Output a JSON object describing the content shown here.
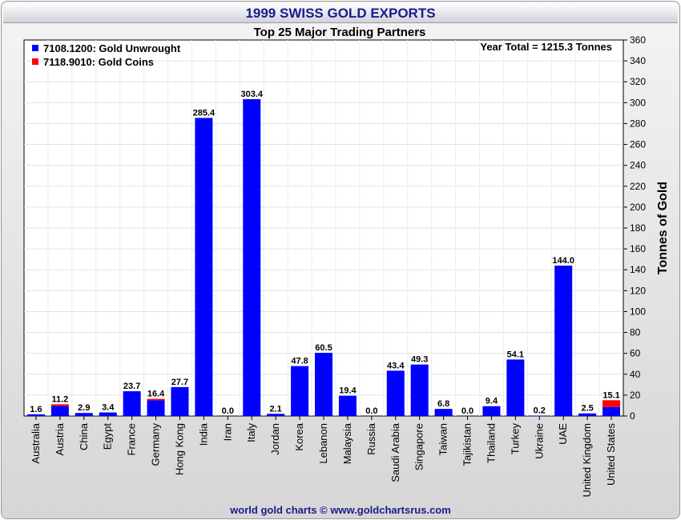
{
  "chart_data": {
    "type": "bar",
    "title": "1999 SWISS GOLD EXPORTS",
    "subtitle": "Top 25 Major Trading Partners",
    "annotation": "Year Total = 1215.3 Tonnes",
    "ylabel": "Tonnes of Gold",
    "xlabel": "",
    "ylim": [
      0,
      360
    ],
    "yticks": [
      0,
      20,
      40,
      60,
      80,
      100,
      120,
      140,
      160,
      180,
      200,
      220,
      240,
      260,
      280,
      300,
      320,
      340,
      360
    ],
    "grid": true,
    "legend_position": "top-left",
    "stacked": true,
    "categories": [
      "Australia",
      "Austria",
      "China",
      "Egypt",
      "France",
      "Germany",
      "Hong Kong",
      "India",
      "Iran",
      "Italy",
      "Jordan",
      "Korea",
      "Lebanon",
      "Malaysia",
      "Russia",
      "Saudi Arabia",
      "Singapore",
      "Taiwan",
      "Tajikistan",
      "Thailand",
      "Turkey",
      "Ukraine",
      "UAE",
      "United Kingdom",
      "United States"
    ],
    "totals": [
      "1.6",
      "11.2",
      "2.9",
      "3.4",
      "23.7",
      "16.4",
      "27.7",
      "285.4",
      "0.0",
      "303.4",
      "2.1",
      "47.8",
      "60.5",
      "19.4",
      "0.0",
      "43.4",
      "49.3",
      "6.8",
      "0.0",
      "9.4",
      "54.1",
      "0.2",
      "144.0",
      "2.5",
      "15.1"
    ],
    "series": [
      {
        "name": "7108.1200: Gold Unwrought",
        "color": "#0000ff",
        "values": [
          1.6,
          9.5,
          2.9,
          3.4,
          23.7,
          15.0,
          27.7,
          285.4,
          0.0,
          303.4,
          2.1,
          47.8,
          60.5,
          19.4,
          0.0,
          43.4,
          49.3,
          6.8,
          0.0,
          9.4,
          54.1,
          0.2,
          144.0,
          2.5,
          8.6
        ]
      },
      {
        "name": "7118.9010: Gold Coins",
        "color": "#ff0000",
        "values": [
          0.0,
          1.7,
          0.0,
          0.0,
          0.0,
          1.4,
          0.0,
          0.0,
          0.0,
          0.0,
          0.0,
          0.0,
          0.0,
          0.0,
          0.0,
          0.0,
          0.0,
          0.0,
          0.0,
          0.0,
          0.0,
          0.0,
          0.0,
          0.0,
          6.5
        ]
      }
    ]
  },
  "footer": "world gold charts © www.goldchartsrus.com"
}
